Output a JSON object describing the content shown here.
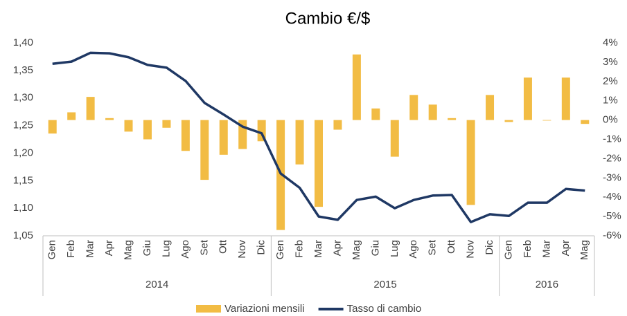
{
  "chart_data": {
    "type": "bar_line",
    "title": "Cambio €/$",
    "category_groups": [
      {
        "name": "2014",
        "categories": [
          "Gen",
          "Feb",
          "Mar",
          "Apr",
          "Mag",
          "Giu",
          "Lug",
          "Ago",
          "Set",
          "Ott",
          "Nov",
          "Dic"
        ]
      },
      {
        "name": "2015",
        "categories": [
          "Gen",
          "Feb",
          "Mar",
          "Apr",
          "Mag",
          "Giu",
          "Lug",
          "Ago",
          "Set",
          "Ott",
          "Nov",
          "Dic"
        ]
      },
      {
        "name": "2016",
        "categories": [
          "Gen",
          "Feb",
          "Mar",
          "Apr",
          "Mag"
        ]
      }
    ],
    "series": [
      {
        "name": "Variazioni mensili",
        "type": "bar",
        "axis": "y2",
        "color": "#f2bc44",
        "values": [
          -0.7,
          0.4,
          1.2,
          0.1,
          -0.6,
          -1.0,
          -0.4,
          -1.6,
          -3.1,
          -1.8,
          -1.5,
          -1.1,
          -5.7,
          -2.3,
          -4.5,
          -0.5,
          3.4,
          0.6,
          -1.9,
          1.3,
          0.8,
          0.1,
          -4.4,
          1.3,
          -0.1,
          2.2,
          0.0,
          2.2,
          -0.2
        ]
      },
      {
        "name": "Tasso di cambio",
        "type": "line",
        "axis": "y",
        "color": "#1f3864",
        "values": [
          1.362,
          1.366,
          1.382,
          1.381,
          1.374,
          1.36,
          1.355,
          1.331,
          1.291,
          1.27,
          1.248,
          1.236,
          1.163,
          1.137,
          1.085,
          1.079,
          1.115,
          1.121,
          1.1,
          1.115,
          1.123,
          1.124,
          1.075,
          1.089,
          1.086,
          1.11,
          1.11,
          1.135,
          1.132
        ]
      }
    ],
    "ylim": [
      1.05,
      1.4
    ],
    "yticks": [
      {
        "value": 1.05,
        "label": "1,05"
      },
      {
        "value": 1.1,
        "label": "1,10"
      },
      {
        "value": 1.15,
        "label": "1,15"
      },
      {
        "value": 1.2,
        "label": "1,20"
      },
      {
        "value": 1.25,
        "label": "1,25"
      },
      {
        "value": 1.3,
        "label": "1,30"
      },
      {
        "value": 1.35,
        "label": "1,35"
      },
      {
        "value": 1.4,
        "label": "1,40"
      }
    ],
    "y2lim": [
      -6,
      4
    ],
    "y2ticks": [
      {
        "value": -6,
        "label": "-6%"
      },
      {
        "value": -5,
        "label": "-5%"
      },
      {
        "value": -4,
        "label": "-4%"
      },
      {
        "value": -3,
        "label": "-3%"
      },
      {
        "value": -2,
        "label": "-2%"
      },
      {
        "value": -1,
        "label": "-1%"
      },
      {
        "value": 0,
        "label": "0%"
      },
      {
        "value": 1,
        "label": "1%"
      },
      {
        "value": 2,
        "label": "2%"
      },
      {
        "value": 3,
        "label": "3%"
      },
      {
        "value": 4,
        "label": "4%"
      }
    ],
    "legend": "bottom"
  }
}
